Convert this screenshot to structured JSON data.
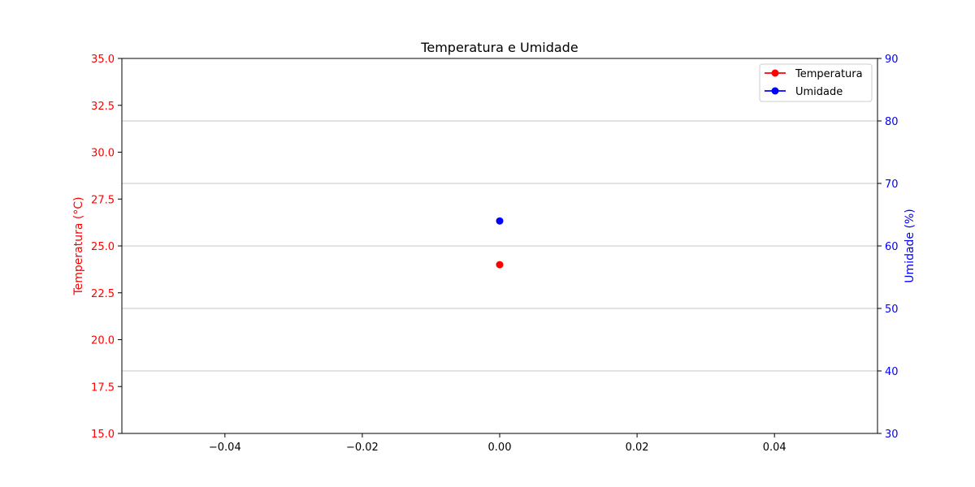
{
  "chart_data": {
    "type": "scatter",
    "title": "Temperatura e Umidade",
    "xlabel": "",
    "xlim": [
      -0.055,
      0.055
    ],
    "x_ticks": [
      -0.04,
      -0.02,
      0.0,
      0.02,
      0.04
    ],
    "x_tick_labels": [
      "−0.04",
      "−0.02",
      "0.00",
      "0.02",
      "0.04"
    ],
    "y_left": {
      "label": "Temperatura (°C)",
      "lim": [
        15,
        35
      ],
      "ticks": [
        15,
        17.5,
        20,
        22.5,
        25,
        27.5,
        30,
        32.5,
        35
      ],
      "tick_labels": [
        "15.0",
        "17.5",
        "20.0",
        "22.5",
        "25.0",
        "27.5",
        "30.0",
        "32.5",
        "35.0"
      ],
      "color": "#ff0000"
    },
    "y_right": {
      "label": "Umidade (%)",
      "lim": [
        30,
        90
      ],
      "ticks": [
        30,
        40,
        50,
        60,
        70,
        80,
        90
      ],
      "tick_labels": [
        "30",
        "40",
        "50",
        "60",
        "70",
        "80",
        "90"
      ],
      "color": "#0000ff"
    },
    "grid": "right-axis horizontal",
    "legend": {
      "placement": "top-right",
      "entries": [
        "Temperatura",
        "Umidade"
      ]
    },
    "series": [
      {
        "name": "Temperatura",
        "axis": "left",
        "color": "#ff0000",
        "marker": "circle",
        "x": [
          0.0
        ],
        "y": [
          24
        ]
      },
      {
        "name": "Umidade",
        "axis": "right",
        "color": "#0000ff",
        "marker": "circle",
        "x": [
          0.0
        ],
        "y": [
          64
        ]
      }
    ]
  }
}
